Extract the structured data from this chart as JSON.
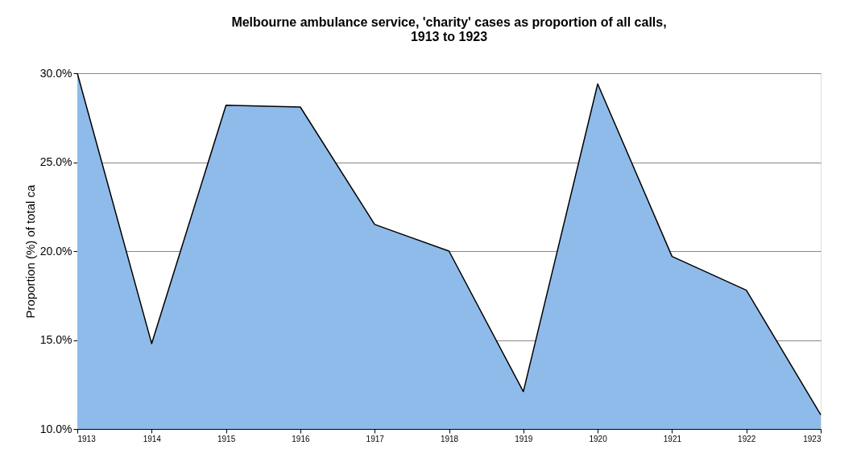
{
  "chart_data": {
    "type": "area",
    "title": "Melbourne ambulance service, 'charity' cases as proportion of all calls,\n1913 to 1923",
    "ylabel": "Proportion (%) of total ca",
    "categories": [
      "1913",
      "1914",
      "1915",
      "1916",
      "1917",
      "1918",
      "1919",
      "1920",
      "1921",
      "1922",
      "1923"
    ],
    "series": [
      {
        "color": "#8fbbea",
        "values": [
          30.0,
          14.8,
          28.2,
          28.1,
          21.5,
          20.0,
          12.1,
          29.4,
          19.7,
          17.8,
          10.8
        ]
      }
    ],
    "ylim": [
      10,
      30
    ],
    "yticks": [
      {
        "value": 10,
        "label": "10.0%"
      },
      {
        "value": 15,
        "label": "15.0%"
      },
      {
        "value": 20,
        "label": "20.0%"
      },
      {
        "value": 25,
        "label": "25.0%"
      },
      {
        "value": 30,
        "label": "30.0%"
      }
    ],
    "grid": "y"
  }
}
